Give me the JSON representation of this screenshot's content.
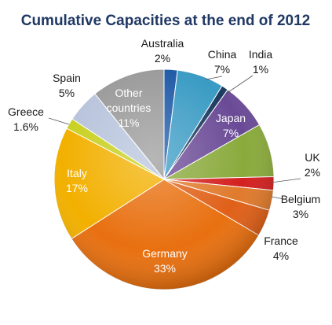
{
  "chart_data": {
    "type": "pie",
    "title": "Cumulative Capacities at the end of 2012",
    "slices": [
      {
        "name": "Australia",
        "value": 2,
        "label": "2%",
        "color": "#1f5aa6"
      },
      {
        "name": "China",
        "value": 7,
        "label": "7%",
        "color": "#3a9bc4"
      },
      {
        "name": "India",
        "value": 1,
        "label": "1%",
        "color": "#1b3a5e"
      },
      {
        "name": "Japan",
        "value": 7,
        "label": "7%",
        "color": "#6a4a96"
      },
      {
        "name": "",
        "value": 8,
        "label": "",
        "color": "#8aaa3c"
      },
      {
        "name": "UK",
        "value": 2,
        "label": "2%",
        "color": "#d42020"
      },
      {
        "name": "Belgium",
        "value": 3,
        "label": "3%",
        "color": "#e07a2c"
      },
      {
        "name": "France",
        "value": 4,
        "label": "4%",
        "color": "#e06018"
      },
      {
        "name": "Germany",
        "value": 33,
        "label": "33%",
        "color": "#e87010"
      },
      {
        "name": "Italy",
        "value": 17,
        "label": "17%",
        "color": "#f2b000"
      },
      {
        "name": "Greece",
        "value": 1.6,
        "label": "1.6%",
        "color": "#c8d020"
      },
      {
        "name": "Spain",
        "value": 5,
        "label": "5%",
        "color": "#b8c4dc"
      },
      {
        "name": "Other countries",
        "value": 11,
        "label": "11%",
        "color": "#9a9a9a"
      }
    ]
  }
}
